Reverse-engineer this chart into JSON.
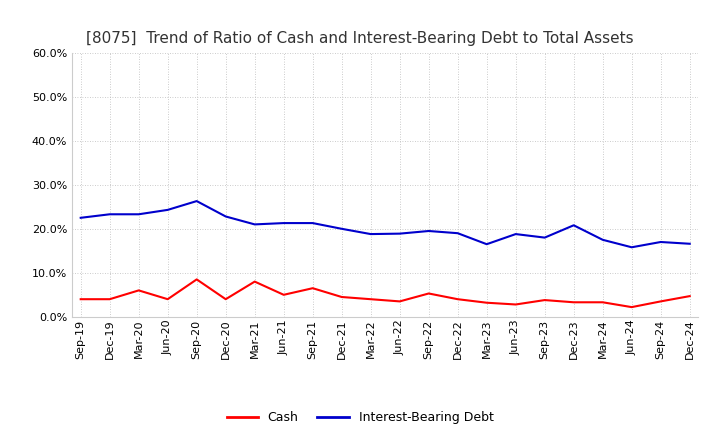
{
  "title": "[8075]  Trend of Ratio of Cash and Interest-Bearing Debt to Total Assets",
  "x_labels": [
    "Sep-19",
    "Dec-19",
    "Mar-20",
    "Jun-20",
    "Sep-20",
    "Dec-20",
    "Mar-21",
    "Jun-21",
    "Sep-21",
    "Dec-21",
    "Mar-22",
    "Jun-22",
    "Sep-22",
    "Dec-22",
    "Mar-23",
    "Jun-23",
    "Sep-23",
    "Dec-23",
    "Mar-24",
    "Jun-24",
    "Sep-24",
    "Dec-24"
  ],
  "cash": [
    0.04,
    0.04,
    0.06,
    0.04,
    0.085,
    0.04,
    0.08,
    0.05,
    0.065,
    0.045,
    0.04,
    0.035,
    0.053,
    0.04,
    0.032,
    0.028,
    0.038,
    0.033,
    0.033,
    0.022,
    0.035,
    0.047
  ],
  "interest_bearing_debt": [
    0.225,
    0.233,
    0.233,
    0.243,
    0.263,
    0.228,
    0.21,
    0.213,
    0.213,
    0.2,
    0.188,
    0.189,
    0.195,
    0.19,
    0.165,
    0.188,
    0.18,
    0.208,
    0.175,
    0.158,
    0.17,
    0.166
  ],
  "cash_color": "#ff0000",
  "ibd_color": "#0000cc",
  "legend_cash": "Cash",
  "legend_ibd": "Interest-Bearing Debt",
  "ylim": [
    0.0,
    0.6
  ],
  "yticks": [
    0.0,
    0.1,
    0.2,
    0.3,
    0.4,
    0.5,
    0.6
  ],
  "background_color": "#ffffff",
  "grid_color": "#bbbbbb",
  "title_fontsize": 11,
  "tick_fontsize": 8
}
